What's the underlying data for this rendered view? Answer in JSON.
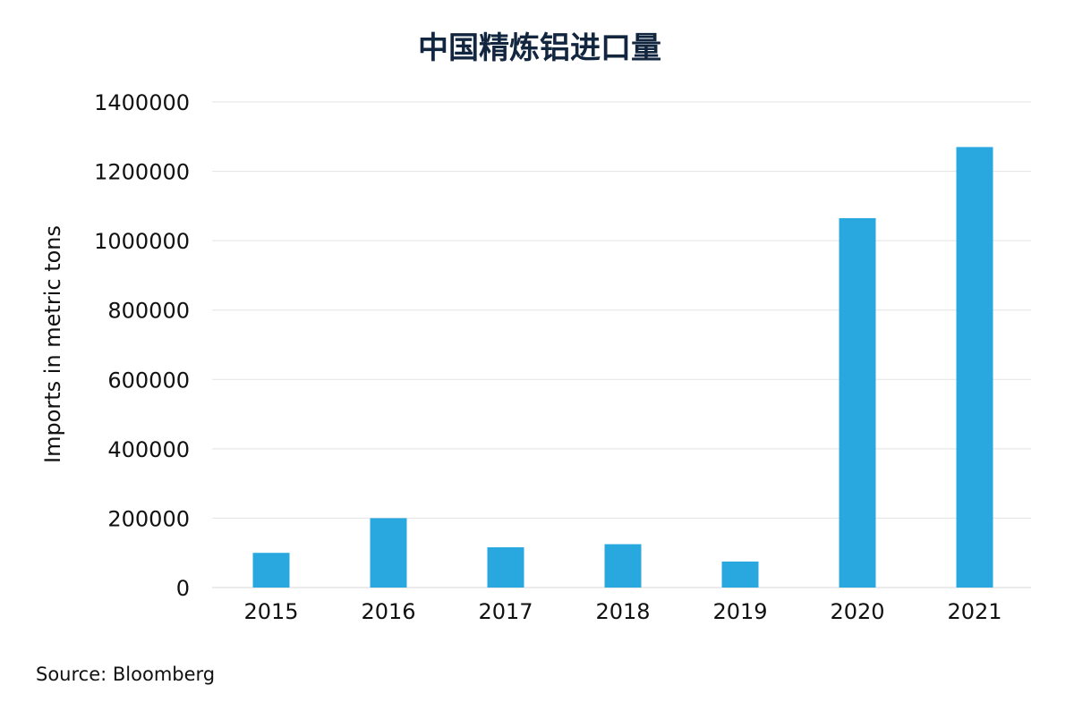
{
  "chart_data": {
    "type": "bar",
    "title": "中国精炼铝进口量",
    "xlabel": "",
    "ylabel": "Imports in metric tons",
    "categories": [
      "2015",
      "2016",
      "2017",
      "2018",
      "2019",
      "2020",
      "2021"
    ],
    "values": [
      100000,
      200000,
      116000,
      125000,
      75000,
      1065000,
      1270000
    ],
    "ylim": [
      0,
      1400000
    ],
    "yticks": [
      0,
      200000,
      400000,
      600000,
      800000,
      1000000,
      1200000,
      1400000
    ],
    "grid": true,
    "legend": "none",
    "bar_color": "#29a8e0",
    "source": "Source: Bloomberg"
  }
}
